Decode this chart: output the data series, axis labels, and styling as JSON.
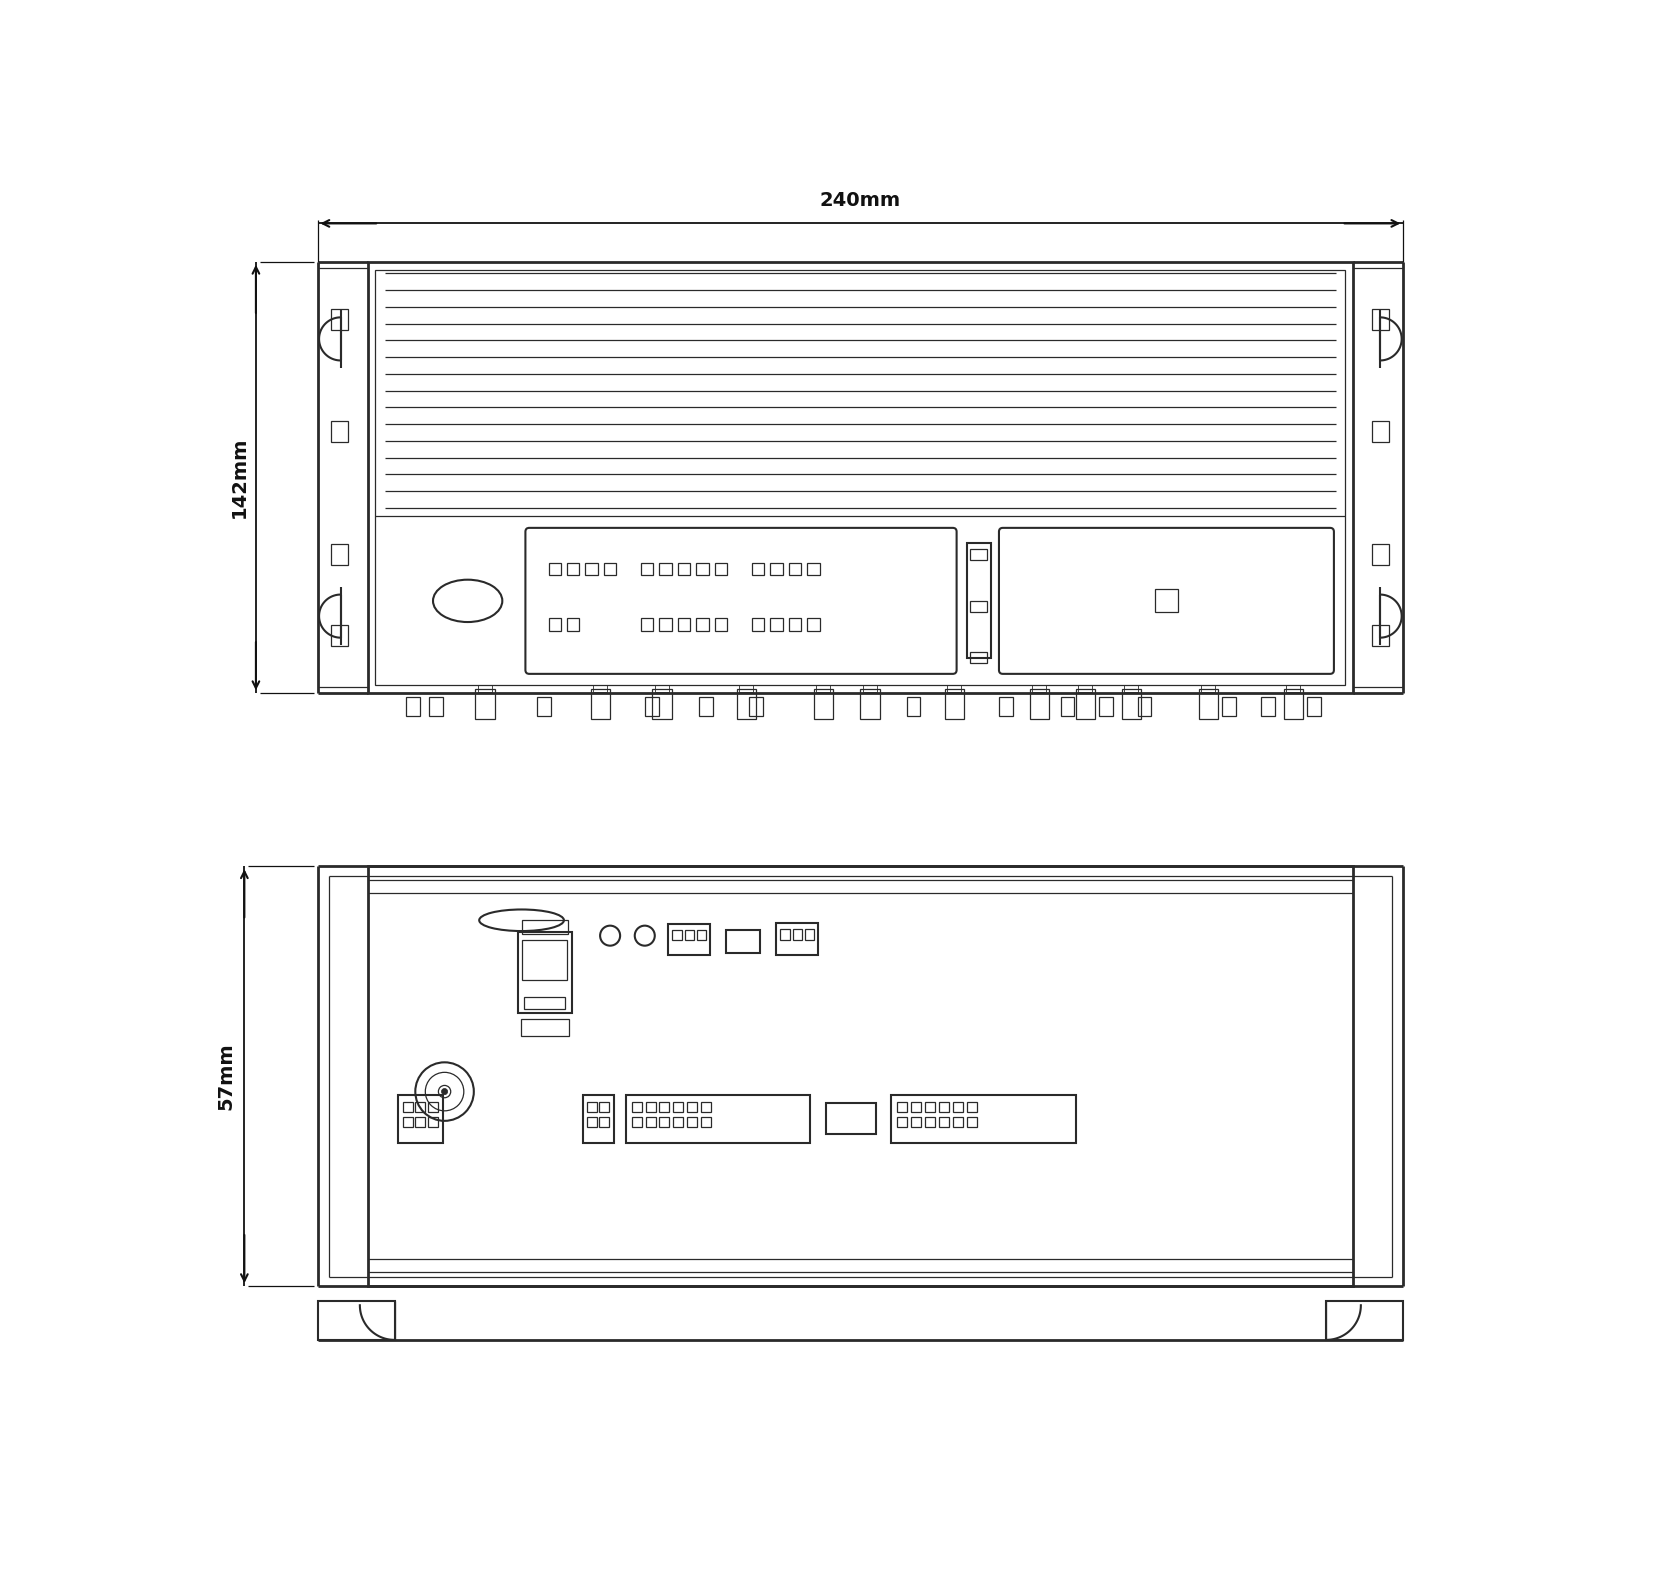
{
  "bg_color": "#ffffff",
  "line_color": "#2a2a2a",
  "dim_color": "#111111",
  "fig_width": 16.75,
  "fig_height": 15.73,
  "top_view": {
    "label_width": "240mm",
    "label_height": "142mm"
  },
  "front_view": {
    "label_depth": "57mm"
  }
}
